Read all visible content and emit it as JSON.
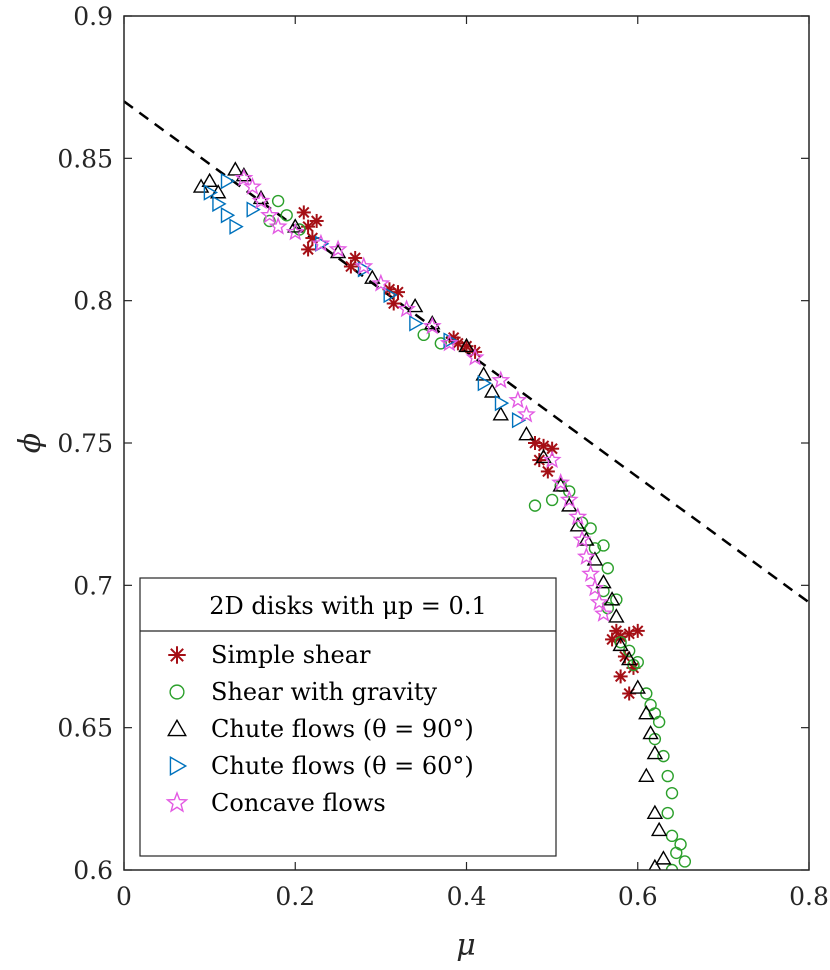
{
  "chart_data": {
    "type": "scatter",
    "xlabel": "μ",
    "ylabel": "ϕ",
    "xlim": [
      0,
      0.8
    ],
    "ylim": [
      0.6,
      0.9
    ],
    "xticks": [
      "0",
      "0.2",
      "0.4",
      "0.6",
      "0.8"
    ],
    "yticks": [
      "0.6",
      "0.65",
      "0.7",
      "0.75",
      "0.8",
      "0.85",
      "0.9"
    ],
    "grid": false,
    "legend_position": "bottom-left",
    "legend_title": "2D disks with μp = 0.1",
    "reference_line": {
      "style": "dashed",
      "color": "#000000",
      "x": [
        0,
        0.8
      ],
      "y": [
        0.87,
        0.694
      ]
    },
    "series": [
      {
        "name": "Simple shear",
        "marker": "asterisk",
        "color": "#a50f15",
        "points": [
          [
            0.21,
            0.831
          ],
          [
            0.215,
            0.826
          ],
          [
            0.22,
            0.822
          ],
          [
            0.225,
            0.828
          ],
          [
            0.215,
            0.818
          ],
          [
            0.27,
            0.815
          ],
          [
            0.265,
            0.812
          ],
          [
            0.31,
            0.804
          ],
          [
            0.32,
            0.803
          ],
          [
            0.315,
            0.799
          ],
          [
            0.39,
            0.785
          ],
          [
            0.4,
            0.784
          ],
          [
            0.41,
            0.782
          ],
          [
            0.385,
            0.787
          ],
          [
            0.48,
            0.75
          ],
          [
            0.49,
            0.749
          ],
          [
            0.5,
            0.748
          ],
          [
            0.485,
            0.744
          ],
          [
            0.495,
            0.74
          ],
          [
            0.575,
            0.684
          ],
          [
            0.58,
            0.682
          ],
          [
            0.59,
            0.683
          ],
          [
            0.6,
            0.684
          ],
          [
            0.57,
            0.681
          ],
          [
            0.585,
            0.675
          ],
          [
            0.58,
            0.668
          ],
          [
            0.59,
            0.662
          ],
          [
            0.595,
            0.671
          ]
        ]
      },
      {
        "name": "Shear with gravity",
        "marker": "circle",
        "color": "#2ca02c",
        "points": [
          [
            0.17,
            0.828
          ],
          [
            0.18,
            0.835
          ],
          [
            0.19,
            0.83
          ],
          [
            0.205,
            0.825
          ],
          [
            0.35,
            0.788
          ],
          [
            0.37,
            0.785
          ],
          [
            0.48,
            0.728
          ],
          [
            0.5,
            0.73
          ],
          [
            0.51,
            0.735
          ],
          [
            0.52,
            0.733
          ],
          [
            0.535,
            0.722
          ],
          [
            0.545,
            0.72
          ],
          [
            0.55,
            0.713
          ],
          [
            0.56,
            0.714
          ],
          [
            0.565,
            0.706
          ],
          [
            0.56,
            0.698
          ],
          [
            0.565,
            0.692
          ],
          [
            0.575,
            0.695
          ],
          [
            0.58,
            0.68
          ],
          [
            0.59,
            0.677
          ],
          [
            0.595,
            0.672
          ],
          [
            0.6,
            0.673
          ],
          [
            0.61,
            0.662
          ],
          [
            0.615,
            0.658
          ],
          [
            0.62,
            0.655
          ],
          [
            0.625,
            0.652
          ],
          [
            0.62,
            0.646
          ],
          [
            0.63,
            0.64
          ],
          [
            0.635,
            0.633
          ],
          [
            0.64,
            0.627
          ],
          [
            0.635,
            0.62
          ],
          [
            0.64,
            0.612
          ],
          [
            0.645,
            0.606
          ],
          [
            0.65,
            0.609
          ],
          [
            0.655,
            0.603
          ],
          [
            0.64,
            0.6
          ]
        ]
      },
      {
        "name": "Chute flows (θ = 90°)",
        "marker": "triangle-up",
        "color": "#000000",
        "points": [
          [
            0.09,
            0.84
          ],
          [
            0.1,
            0.842
          ],
          [
            0.11,
            0.838
          ],
          [
            0.13,
            0.846
          ],
          [
            0.14,
            0.844
          ],
          [
            0.16,
            0.836
          ],
          [
            0.2,
            0.826
          ],
          [
            0.25,
            0.817
          ],
          [
            0.29,
            0.808
          ],
          [
            0.34,
            0.798
          ],
          [
            0.36,
            0.792
          ],
          [
            0.4,
            0.784
          ],
          [
            0.42,
            0.774
          ],
          [
            0.43,
            0.768
          ],
          [
            0.44,
            0.76
          ],
          [
            0.47,
            0.753
          ],
          [
            0.49,
            0.745
          ],
          [
            0.51,
            0.735
          ],
          [
            0.52,
            0.728
          ],
          [
            0.53,
            0.721
          ],
          [
            0.54,
            0.716
          ],
          [
            0.55,
            0.709
          ],
          [
            0.56,
            0.701
          ],
          [
            0.57,
            0.695
          ],
          [
            0.575,
            0.689
          ],
          [
            0.58,
            0.679
          ],
          [
            0.59,
            0.674
          ],
          [
            0.6,
            0.664
          ],
          [
            0.61,
            0.655
          ],
          [
            0.615,
            0.648
          ],
          [
            0.62,
            0.641
          ],
          [
            0.61,
            0.633
          ],
          [
            0.62,
            0.62
          ],
          [
            0.625,
            0.614
          ],
          [
            0.63,
            0.604
          ],
          [
            0.62,
            0.601
          ]
        ]
      },
      {
        "name": "Chute flows (θ = 60°)",
        "marker": "triangle-right",
        "color": "#0072bd",
        "points": [
          [
            0.1,
            0.838
          ],
          [
            0.11,
            0.834
          ],
          [
            0.12,
            0.83
          ],
          [
            0.13,
            0.826
          ],
          [
            0.12,
            0.842
          ],
          [
            0.15,
            0.832
          ],
          [
            0.23,
            0.82
          ],
          [
            0.28,
            0.811
          ],
          [
            0.31,
            0.802
          ],
          [
            0.34,
            0.792
          ],
          [
            0.38,
            0.786
          ],
          [
            0.42,
            0.771
          ],
          [
            0.44,
            0.764
          ],
          [
            0.46,
            0.758
          ]
        ]
      },
      {
        "name": "Concave flows",
        "marker": "pentagram",
        "color": "#e35ae3",
        "points": [
          [
            0.14,
            0.843
          ],
          [
            0.15,
            0.84
          ],
          [
            0.16,
            0.835
          ],
          [
            0.17,
            0.83
          ],
          [
            0.18,
            0.826
          ],
          [
            0.2,
            0.824
          ],
          [
            0.23,
            0.82
          ],
          [
            0.25,
            0.818
          ],
          [
            0.28,
            0.812
          ],
          [
            0.3,
            0.806
          ],
          [
            0.33,
            0.797
          ],
          [
            0.36,
            0.791
          ],
          [
            0.38,
            0.785
          ],
          [
            0.41,
            0.78
          ],
          [
            0.44,
            0.772
          ],
          [
            0.46,
            0.765
          ],
          [
            0.47,
            0.76
          ],
          [
            0.5,
            0.744
          ],
          [
            0.51,
            0.736
          ],
          [
            0.52,
            0.73
          ],
          [
            0.53,
            0.724
          ],
          [
            0.535,
            0.716
          ],
          [
            0.54,
            0.71
          ],
          [
            0.545,
            0.704
          ],
          [
            0.55,
            0.699
          ],
          [
            0.555,
            0.694
          ],
          [
            0.56,
            0.69
          ]
        ]
      }
    ]
  }
}
